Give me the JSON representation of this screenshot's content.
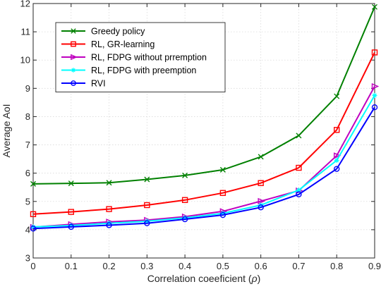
{
  "chart_data": {
    "type": "line",
    "xlabel_prefix": "Correlation coeeficient (",
    "xlabel_symbol": "ρ",
    "xlabel_suffix": ")",
    "ylabel": "Average AoI",
    "xlim": [
      0,
      0.9
    ],
    "ylim": [
      3,
      12
    ],
    "xticks": [
      0,
      0.1,
      0.2,
      0.3,
      0.4,
      0.5,
      0.6,
      0.7,
      0.8,
      0.9
    ],
    "xtick_labels": [
      "0",
      "0.1",
      "0.2",
      "0.3",
      "0.4",
      "0.5",
      "0.6",
      "0.7",
      "0.8",
      "0.9"
    ],
    "yticks": [
      3,
      4,
      5,
      6,
      7,
      8,
      9,
      10,
      11,
      12
    ],
    "ytick_labels": [
      "3",
      "4",
      "5",
      "6",
      "7",
      "8",
      "9",
      "10",
      "11",
      "12"
    ],
    "grid": true,
    "legend_position": "top-left",
    "x": [
      0,
      0.1,
      0.2,
      0.3,
      0.4,
      0.5,
      0.6,
      0.7,
      0.8,
      0.9
    ],
    "series": [
      {
        "name": "Greedy policy",
        "color": "#008000",
        "marker": "x",
        "values": [
          5.62,
          5.64,
          5.66,
          5.78,
          5.92,
          6.12,
          6.58,
          7.33,
          8.72,
          11.88
        ]
      },
      {
        "name": "RL, GR-learning",
        "color": "#ff0000",
        "marker": "square",
        "values": [
          4.55,
          4.63,
          4.73,
          4.87,
          5.05,
          5.3,
          5.65,
          6.19,
          7.53,
          10.27
        ]
      },
      {
        "name": "RL, FDPG without prremption",
        "color": "#bf00bf",
        "marker": "triangle-right",
        "values": [
          4.09,
          4.19,
          4.28,
          4.34,
          4.46,
          4.65,
          5.01,
          5.38,
          6.62,
          9.07
        ]
      },
      {
        "name": "RL, FDPG with preemption",
        "color": "#00ffff",
        "marker": "star",
        "values": [
          4.1,
          4.15,
          4.23,
          4.3,
          4.42,
          4.58,
          4.87,
          5.4,
          6.45,
          8.75
        ]
      },
      {
        "name": "RVI",
        "color": "#0000ff",
        "marker": "circle",
        "values": [
          4.04,
          4.1,
          4.16,
          4.23,
          4.37,
          4.52,
          4.79,
          5.25,
          6.15,
          8.33
        ]
      }
    ]
  }
}
